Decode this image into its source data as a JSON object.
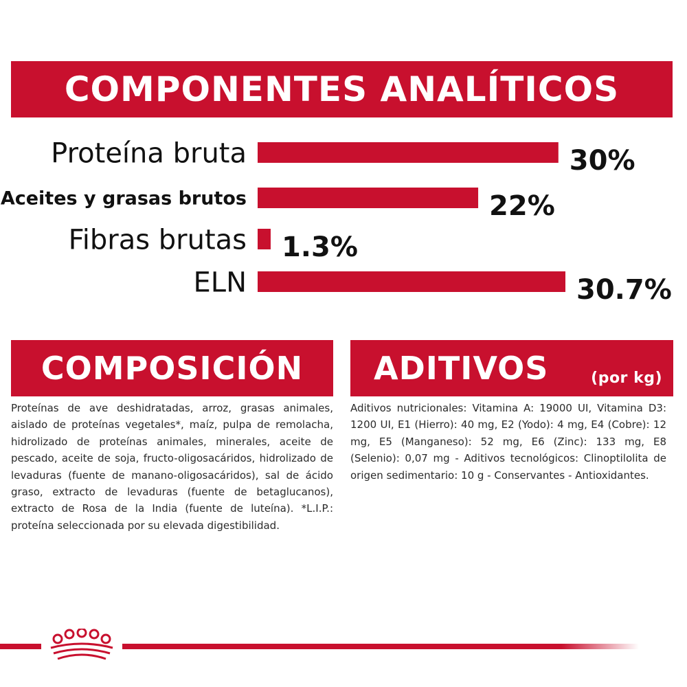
{
  "banners": {
    "analytic": "COMPONENTES ANALÍTICOS",
    "composition": "COMPOSICIÓN",
    "additives": "ADITIVOS",
    "additives_unit": "(por kg)"
  },
  "chart_data": {
    "type": "bar",
    "orientation": "horizontal",
    "categories": [
      "Proteína bruta",
      "Aceites y grasas brutos",
      "Fibras brutas",
      "ELN"
    ],
    "values": [
      30,
      22,
      1.3,
      30.7
    ],
    "value_labels": [
      "30%",
      "22%",
      "1.3%",
      "30.7%"
    ],
    "title": "COMPONENTES ANALÍTICOS",
    "xlabel": "",
    "ylabel": "",
    "xlim": [
      0,
      30.7
    ],
    "grid": false,
    "bar_color": "#c8102e"
  },
  "composition_text": "Proteínas de ave deshidratadas, arroz, grasas animales, aislado de proteínas vegetales*, maíz, pulpa de remolacha, hidrolizado de proteínas animales, minerales, aceite de pescado, aceite de soja, fructo-oligosacáridos, hidrolizado de levaduras (fuente de manano-oligosacáridos), sal de ácido graso, extracto de levaduras (fuente de betaglucanos), extracto de Rosa de la India (fuente de luteína). *L.I.P.: proteína seleccionada por su elevada digestibilidad.",
  "additives_text": "Aditivos nutricionales: Vitamina A: 19000 UI, Vitamina D3: 1200 UI, E1 (Hierro): 40 mg, E2 (Yodo): 4 mg, E4 (Cobre): 12 mg, E5 (Manganeso): 52 mg, E6 (Zinc): 133 mg, E8 (Selenio): 0,07 mg - Aditivos tecnológicos: Clinoptilolita de origen sedimentario: 10 g - Conservantes - Antioxidantes.",
  "colors": {
    "brand_red": "#c8102e",
    "text": "#2a2a2a"
  },
  "footer": {
    "logo_icon": "crown-icon"
  }
}
